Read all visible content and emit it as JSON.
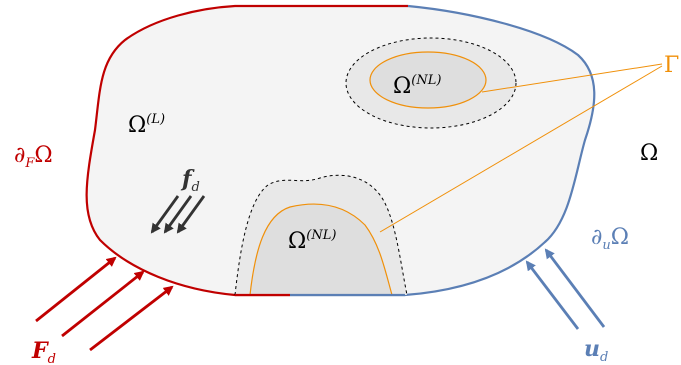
{
  "labels": {
    "gamma": "Γ",
    "omega": "Ω",
    "omega_l_base": "Ω",
    "omega_l_sup": "(L)",
    "omega_nl_top_base": "Ω",
    "omega_nl_top_sup": "(NL)",
    "omega_nl_bottom_base": "Ω",
    "omega_nl_bottom_sup": "(NL)",
    "f_d_base": "f",
    "f_d_sub": "d",
    "dF_partial": "∂",
    "dF_sub": "F",
    "dF_omega": "Ω",
    "du_partial": "∂",
    "du_sub": "u",
    "du_omega": "Ω",
    "F_d_base": "F",
    "F_d_sub": "d",
    "u_d_base": "u",
    "u_d_sub": "d"
  },
  "colors": {
    "red": "#c00000",
    "blue": "#5b7fb5",
    "orange": "#f0900a",
    "gray_fill": "#f4f4f4",
    "nl_fill": "#dedede",
    "dark": "#333333"
  }
}
